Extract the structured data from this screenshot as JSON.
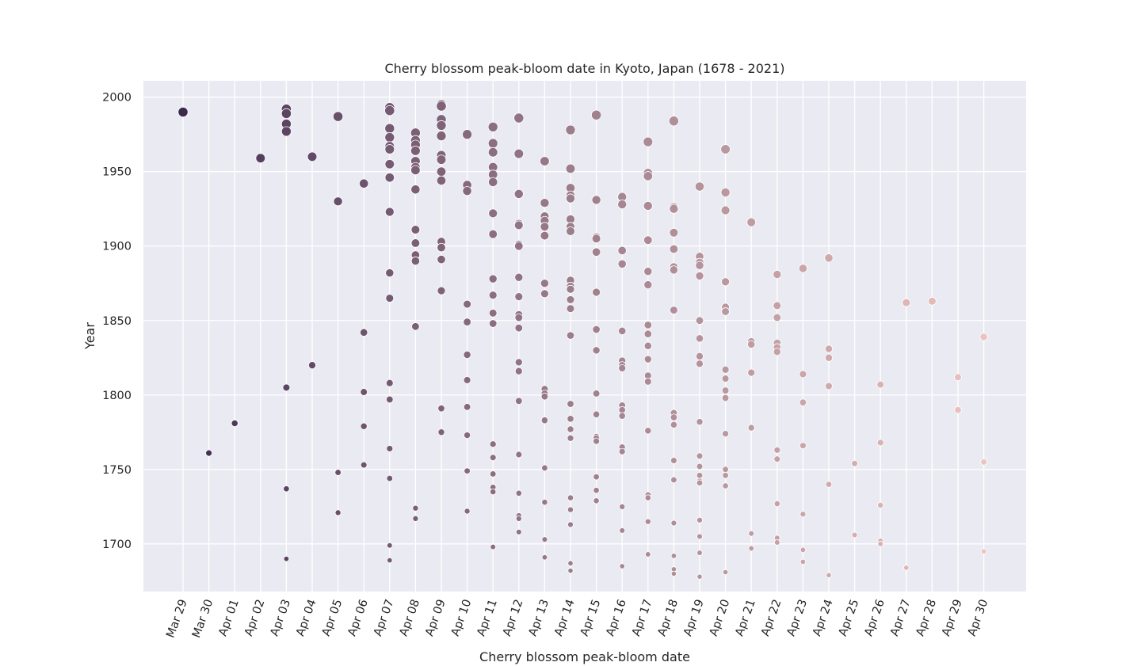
{
  "chart_data": {
    "type": "scatter",
    "title": "Cherry blossom peak-bloom date in Kyoto, Japan (1678 - 2021)",
    "xlabel": "Cherry blossom peak-bloom date",
    "ylabel": "Year",
    "x_categories": [
      "Mar 29",
      "Mar 30",
      "Apr 01",
      "Apr 02",
      "Apr 03",
      "Apr 04",
      "Apr 05",
      "Apr 06",
      "Apr 07",
      "Apr 08",
      "Apr 09",
      "Apr 10",
      "Apr 11",
      "Apr 12",
      "Apr 13",
      "Apr 14",
      "Apr 15",
      "Apr 16",
      "Apr 17",
      "Apr 18",
      "Apr 19",
      "Apr 20",
      "Apr 21",
      "Apr 22",
      "Apr 23",
      "Apr 24",
      "Apr 25",
      "Apr 26",
      "Apr 27",
      "Apr 28",
      "Apr 29",
      "Apr 30"
    ],
    "ylim": [
      1668,
      2011
    ],
    "y_ticks": [
      1700,
      1750,
      1800,
      1850,
      1900,
      1950,
      2000
    ],
    "grid": true,
    "background": "#eaeaf2",
    "grid_color": "#ffffff",
    "color_light": "#ecc3bf",
    "color_dark": "#3c2a4e",
    "points": [
      {
        "x": "Mar 29",
        "years": [
          1990
        ]
      },
      {
        "x": "Mar 30",
        "years": [
          1761
        ]
      },
      {
        "x": "Apr 01",
        "years": [
          1781
        ]
      },
      {
        "x": "Apr 02",
        "years": [
          1959
        ]
      },
      {
        "x": "Apr 03",
        "years": [
          1992,
          1989,
          1982,
          1977,
          1805,
          1737,
          1690
        ]
      },
      {
        "x": "Apr 04",
        "years": [
          1960,
          1820
        ]
      },
      {
        "x": "Apr 05",
        "years": [
          1987,
          1930,
          1748,
          1721
        ]
      },
      {
        "x": "Apr 06",
        "years": [
          1942,
          1842,
          1802,
          1779,
          1753
        ]
      },
      {
        "x": "Apr 07",
        "years": [
          1993,
          1991,
          1979,
          1973,
          1967,
          1965,
          1955,
          1946,
          1923,
          1882,
          1865,
          1808,
          1797,
          1764,
          1744,
          1699,
          1689
        ]
      },
      {
        "x": "Apr 08",
        "years": [
          1976,
          1971,
          1968,
          1964,
          1957,
          1953,
          1951,
          1938,
          1911,
          1902,
          1894,
          1890,
          1846,
          1724,
          1717
        ]
      },
      {
        "x": "Apr 09",
        "years": [
          1995,
          1994,
          1985,
          1981,
          1974,
          1961,
          1958,
          1950,
          1944,
          1903,
          1899,
          1891,
          1870,
          1791,
          1775
        ]
      },
      {
        "x": "Apr 10",
        "years": [
          1975,
          1941,
          1937,
          1861,
          1849,
          1827,
          1810,
          1792,
          1773,
          1749,
          1722
        ]
      },
      {
        "x": "Apr 11",
        "years": [
          1980,
          1969,
          1963,
          1953,
          1948,
          1943,
          1922,
          1908,
          1878,
          1867,
          1855,
          1848,
          1767,
          1758,
          1747,
          1738,
          1735,
          1698
        ]
      },
      {
        "x": "Apr 12",
        "years": [
          1986,
          1962,
          1935,
          1915,
          1914,
          1901,
          1900,
          1879,
          1866,
          1854,
          1852,
          1845,
          1822,
          1816,
          1796,
          1760,
          1734,
          1719,
          1717,
          1708
        ]
      },
      {
        "x": "Apr 13",
        "years": [
          1957,
          1929,
          1920,
          1917,
          1913,
          1907,
          1875,
          1868,
          1804,
          1801,
          1799,
          1783,
          1751,
          1728,
          1703,
          1691
        ]
      },
      {
        "x": "Apr 14",
        "years": [
          1978,
          1952,
          1939,
          1934,
          1932,
          1918,
          1913,
          1910,
          1877,
          1873,
          1871,
          1864,
          1858,
          1840,
          1794,
          1784,
          1777,
          1771,
          1731,
          1723,
          1713,
          1687,
          1682
        ]
      },
      {
        "x": "Apr 15",
        "years": [
          1988,
          1931,
          1906,
          1905,
          1896,
          1869,
          1844,
          1830,
          1801,
          1787,
          1772,
          1771,
          1769,
          1745,
          1736,
          1729
        ]
      },
      {
        "x": "Apr 16",
        "years": [
          1933,
          1928,
          1897,
          1888,
          1843,
          1823,
          1820,
          1818,
          1793,
          1790,
          1786,
          1765,
          1762,
          1725,
          1709,
          1685
        ]
      },
      {
        "x": "Apr 17",
        "years": [
          1970,
          1949,
          1947,
          1927,
          1904,
          1883,
          1874,
          1847,
          1841,
          1833,
          1824,
          1813,
          1809,
          1776,
          1733,
          1731,
          1715,
          1693
        ]
      },
      {
        "x": "Apr 18",
        "years": [
          1984,
          1926,
          1925,
          1909,
          1898,
          1886,
          1884,
          1857,
          1788,
          1785,
          1780,
          1756,
          1743,
          1714,
          1692,
          1683,
          1680
        ]
      },
      {
        "x": "Apr 19",
        "years": [
          1940,
          1893,
          1889,
          1887,
          1880,
          1850,
          1838,
          1826,
          1821,
          1782,
          1759,
          1752,
          1746,
          1742,
          1741,
          1716,
          1705,
          1694,
          1678
        ]
      },
      {
        "x": "Apr 20",
        "years": [
          1965,
          1936,
          1924,
          1876,
          1859,
          1856,
          1817,
          1811,
          1803,
          1798,
          1774,
          1750,
          1746,
          1739,
          1681
        ]
      },
      {
        "x": "Apr 21",
        "years": [
          1916,
          1836,
          1834,
          1815,
          1778,
          1707,
          1697
        ]
      },
      {
        "x": "Apr 22",
        "years": [
          1881,
          1860,
          1852,
          1835,
          1832,
          1829,
          1763,
          1757,
          1727,
          1704,
          1701
        ]
      },
      {
        "x": "Apr 23",
        "years": [
          1885,
          1814,
          1795,
          1766,
          1720,
          1696,
          1688
        ]
      },
      {
        "x": "Apr 24",
        "years": [
          1892,
          1831,
          1825,
          1806,
          1740,
          1679
        ]
      },
      {
        "x": "Apr 25",
        "years": [
          1754,
          1706
        ]
      },
      {
        "x": "Apr 26",
        "years": [
          1807,
          1768,
          1726,
          1702,
          1700
        ]
      },
      {
        "x": "Apr 27",
        "years": [
          1862,
          1684
        ]
      },
      {
        "x": "Apr 28",
        "years": [
          1863
        ]
      },
      {
        "x": "Apr 29",
        "years": [
          1812,
          1790
        ]
      },
      {
        "x": "Apr 30",
        "years": [
          1839,
          1755,
          1695
        ]
      }
    ]
  }
}
